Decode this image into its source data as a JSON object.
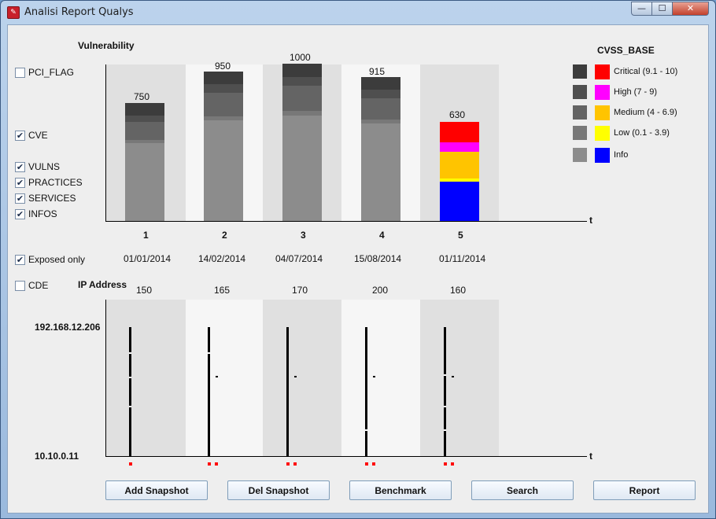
{
  "window": {
    "title": "Analisi Report Qualys"
  },
  "filters": {
    "pci_flag": {
      "label": "PCI_FLAG",
      "checked": false
    },
    "cve": {
      "label": "CVE",
      "checked": true
    },
    "vulns": {
      "label": "VULNS",
      "checked": true
    },
    "practices": {
      "label": "PRACTICES",
      "checked": true
    },
    "services": {
      "label": "SERVICES",
      "checked": true
    },
    "infos": {
      "label": "INFOS",
      "checked": true
    },
    "exposed_only": {
      "label": "Exposed only",
      "checked": true
    },
    "cde": {
      "label": "CDE",
      "checked": false
    }
  },
  "vuln_chart": {
    "title": "Vulnerability",
    "axis_end_label": "t",
    "columns": [
      {
        "index": "1",
        "date": "01/01/2014",
        "total": "750"
      },
      {
        "index": "2",
        "date": "14/02/2014",
        "total": "950"
      },
      {
        "index": "3",
        "date": "04/07/2014",
        "total": "1000"
      },
      {
        "index": "4",
        "date": "15/08/2014",
        "total": "915"
      },
      {
        "index": "5",
        "date": "01/11/2014",
        "total": "630"
      }
    ]
  },
  "legend": {
    "title": "CVSS_BASE",
    "items": [
      {
        "name": "Critical",
        "range": "(9.1 - 10)",
        "color": "#ff0000",
        "gray": "#3c3c3c"
      },
      {
        "name": "High",
        "range": "(7 - 9)",
        "color": "#ff00ff",
        "gray": "#4f4f4f"
      },
      {
        "name": "Medium",
        "range": "(4 - 6.9)",
        "color": "#ffc400",
        "gray": "#646464"
      },
      {
        "name": "Low",
        "range": "(0.1 - 3.9)",
        "color": "#ffff00",
        "gray": "#787878"
      },
      {
        "name": "Info",
        "range": "",
        "color": "#0000ff",
        "gray": "#8c8c8c"
      }
    ]
  },
  "ip_chart": {
    "title": "IP Address",
    "y_top_label": "192.168.12.206",
    "y_bottom_label": "10.10.0.11",
    "axis_end_label": "t",
    "columns": [
      {
        "count": "150"
      },
      {
        "count": "165"
      },
      {
        "count": "170"
      },
      {
        "count": "200"
      },
      {
        "count": "160"
      }
    ]
  },
  "chart_data": [
    {
      "type": "bar",
      "title": "Vulnerability",
      "categories": [
        "1",
        "2",
        "3",
        "4",
        "5"
      ],
      "x_labels": [
        "01/01/2014",
        "14/02/2014",
        "04/07/2014",
        "15/08/2014",
        "01/11/2014"
      ],
      "totals": [
        750,
        950,
        1000,
        915,
        630
      ],
      "series": [
        {
          "name": "Critical",
          "values": [
            80,
            80,
            85,
            80,
            130
          ]
        },
        {
          "name": "High",
          "values": [
            40,
            55,
            55,
            55,
            60
          ]
        },
        {
          "name": "Medium",
          "values": [
            115,
            150,
            160,
            135,
            170
          ]
        },
        {
          "name": "Low",
          "values": [
            20,
            25,
            30,
            25,
            20
          ]
        },
        {
          "name": "Info",
          "values": [
            495,
            640,
            670,
            620,
            250
          ]
        }
      ],
      "ylim": [
        0,
        1000
      ],
      "note_render": "columns 1-4 drawn grayscale, column 5 drawn in color"
    },
    {
      "type": "scatter",
      "title": "IP Address",
      "categories": [
        "1",
        "2",
        "3",
        "4",
        "5"
      ],
      "counts": [
        150,
        165,
        170,
        200,
        160
      ],
      "y_range": [
        "10.10.0.11",
        "192.168.12.206"
      ]
    }
  ],
  "buttons": {
    "add_snapshot": "Add Snapshot",
    "del_snapshot": "Del Snapshot",
    "benchmark": "Benchmark",
    "search": "Search",
    "report": "Report"
  }
}
